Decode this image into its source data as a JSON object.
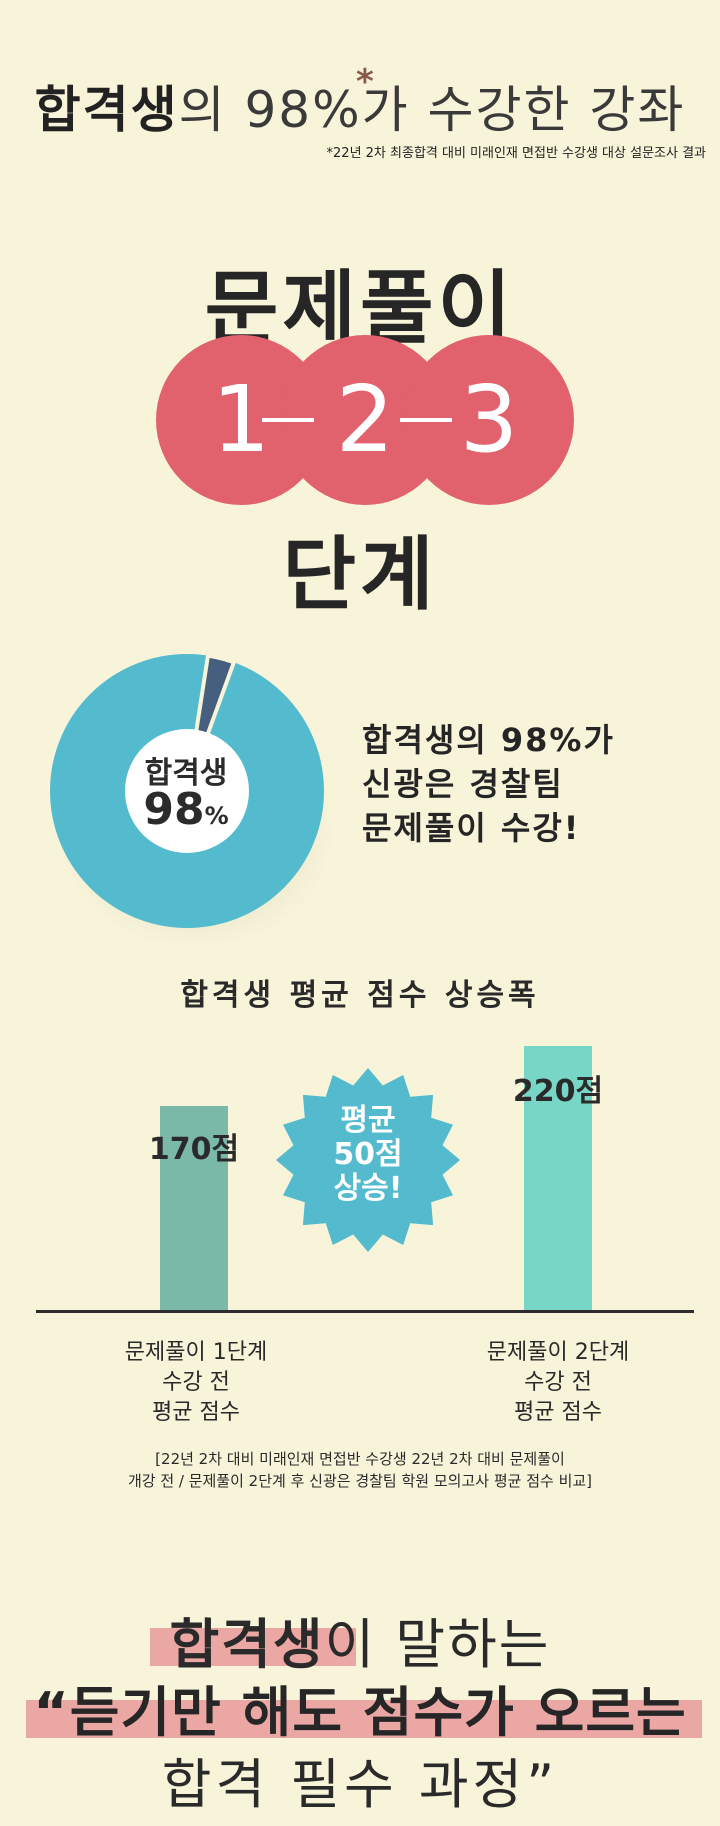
{
  "header": {
    "title_bold": "합격생",
    "title_rest": "의 98%가 수강한 강좌",
    "asterisk": "*",
    "footnote": "*22년 2차 최종합격 대비 미래인재 면접반 수강생 대상 설문조사 결과"
  },
  "steps": {
    "title": "문제풀이",
    "numbers": [
      "1",
      "2",
      "3"
    ],
    "subtitle": "단계",
    "accent_color": "#e1616d"
  },
  "donut": {
    "label": "합격생",
    "value": "98",
    "unit": "%",
    "percent": 98,
    "ring_color": "#53bbcd",
    "minor_color": "#475f7e",
    "description": [
      "합격생의 98%가",
      "신광은 경찰팀",
      "문제풀이 수강!"
    ]
  },
  "chart_data": {
    "type": "bar",
    "title": "합격생 평균 점수 상승폭",
    "categories": [
      "문제풀이 1단계 수강 전 평균 점수",
      "문제풀이 2단계 수강 전 평균 점수"
    ],
    "category_lines": [
      [
        "문제풀이 1단계",
        "수강 전",
        "평균 점수"
      ],
      [
        "문제풀이 2단계",
        "수강 전",
        "평균 점수"
      ]
    ],
    "values": [
      170,
      220
    ],
    "value_labels": [
      "170점",
      "220점"
    ],
    "unit": "점",
    "ylim": [
      0,
      220
    ],
    "colors": [
      "#7ab8a8",
      "#78d6c6"
    ],
    "annotation": [
      "평균",
      "50점",
      "상승!"
    ],
    "annotation_color": "#53bbcd"
  },
  "survey_note": [
    "[22년 2차 대비 미래인재 면접반 수강생 22년 2차 대비 문제풀이",
    "개강 전 / 문제풀이 2단계 후 신광은 경찰팀 학원 모의고사 평균 점수 비교]"
  ],
  "slogan": {
    "line1_bold": "합격생",
    "line1_rest": "이 말하는",
    "line2": "“듣기만 해도 점수가 오르는",
    "line3": "합격 필수 과정”",
    "highlight_color": "#eba7a4"
  }
}
